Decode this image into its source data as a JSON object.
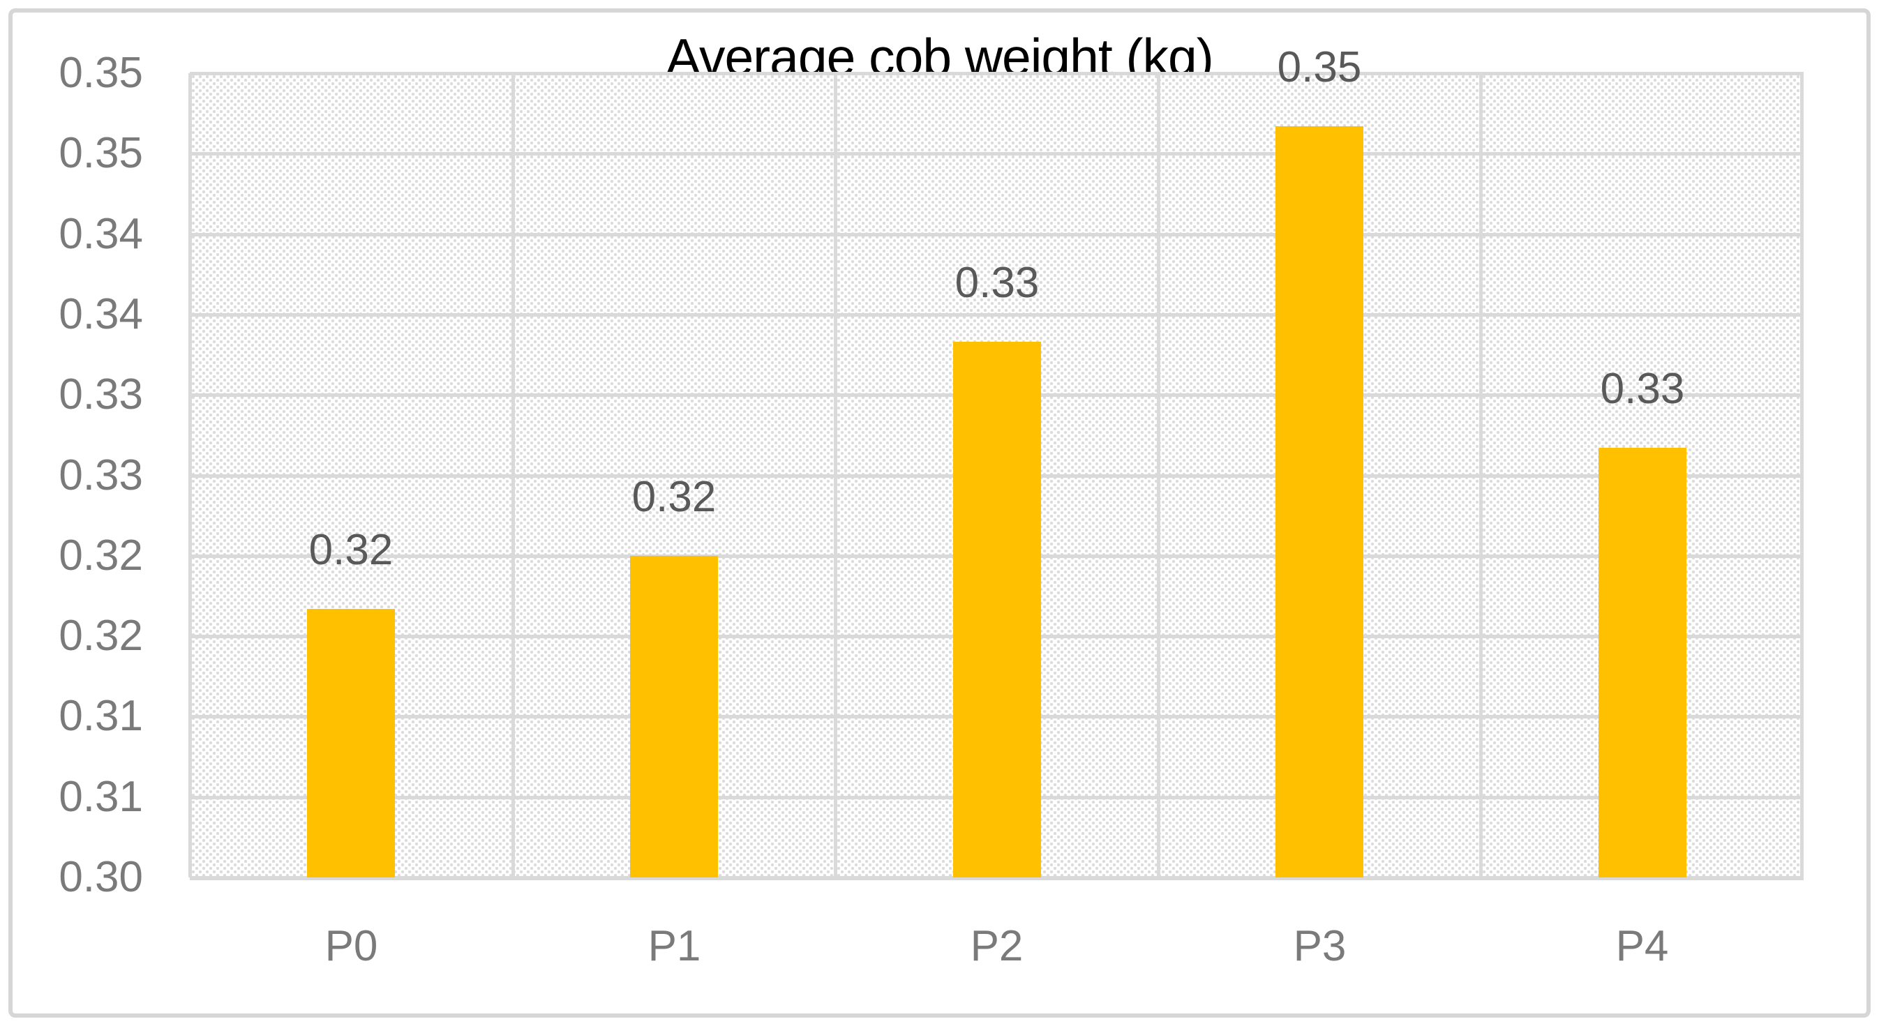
{
  "chart_data": {
    "type": "bar",
    "title": "Average cob weight (kg)",
    "categories": [
      "P0",
      "P1",
      "P2",
      "P3",
      "P4"
    ],
    "values": [
      0.3167,
      0.32,
      0.3333,
      0.3467,
      0.3267
    ],
    "data_labels": [
      "0.32",
      "0.32",
      "0.33",
      "0.35",
      "0.33"
    ],
    "y_axis_tick_labels_top_to_bottom": [
      "0.35",
      "0.35",
      "0.34",
      "0.34",
      "0.33",
      "0.33",
      "0.32",
      "0.32",
      "0.31",
      "0.31",
      "0.30"
    ],
    "ylim": [
      0.3,
      0.35
    ],
    "y_major_unit": 0.005,
    "xlabel": "",
    "ylabel": "",
    "grid": true,
    "legend_position": "none",
    "colors": {
      "bar": "#FFC000",
      "gridline": "#D9D9D9",
      "plot_hatch_dot": "#DBDBDB",
      "axis_tick_label": "#7A7A7A",
      "data_label": "#595959",
      "title": "#000000",
      "chart_border": "#D6D6D6",
      "background": "#FFFFFF"
    }
  }
}
